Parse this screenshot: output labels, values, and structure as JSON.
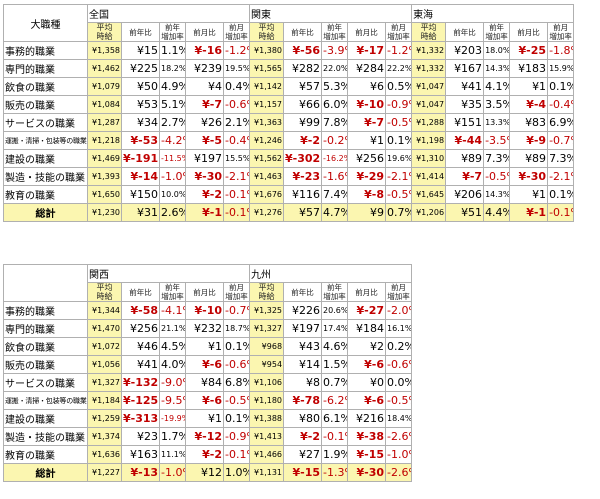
{
  "corner_label": "大職種",
  "subheaders": [
    "平均\n時給",
    "前年比",
    "前年\n増加率",
    "前月比",
    "前月\n増加率"
  ],
  "top_table": {
    "regions": [
      "全国",
      "関東",
      "東海"
    ],
    "rows": [
      {
        "cat": "事務的職業",
        "small": false,
        "cells": [
          [
            "¥1,358",
            "¥15",
            "1.1%",
            "¥-16",
            "-1.2%"
          ],
          [
            "¥1,380",
            "¥-56",
            "-3.9%",
            "¥-17",
            "-1.2%"
          ],
          [
            "¥1,332",
            "¥203",
            "18.0%",
            "¥-25",
            "-1.8%"
          ]
        ]
      },
      {
        "cat": "専門的職業",
        "small": false,
        "cells": [
          [
            "¥1,462",
            "¥225",
            "18.2%",
            "¥239",
            "19.5%"
          ],
          [
            "¥1,565",
            "¥282",
            "22.0%",
            "¥284",
            "22.2%"
          ],
          [
            "¥1,332",
            "¥167",
            "14.3%",
            "¥183",
            "15.9%"
          ]
        ]
      },
      {
        "cat": "飲食の職業",
        "small": false,
        "cells": [
          [
            "¥1,079",
            "¥50",
            "4.9%",
            "¥4",
            "0.4%"
          ],
          [
            "¥1,142",
            "¥57",
            "5.3%",
            "¥6",
            "0.5%"
          ],
          [
            "¥1,047",
            "¥41",
            "4.1%",
            "¥1",
            "0.1%"
          ]
        ]
      },
      {
        "cat": "販売の職業",
        "small": false,
        "cells": [
          [
            "¥1,084",
            "¥53",
            "5.1%",
            "¥-7",
            "-0.6%"
          ],
          [
            "¥1,157",
            "¥66",
            "6.0%",
            "¥-10",
            "-0.9%"
          ],
          [
            "¥1,047",
            "¥35",
            "3.5%",
            "¥-4",
            "-0.4%"
          ]
        ]
      },
      {
        "cat": "サービスの職業",
        "small": false,
        "cells": [
          [
            "¥1,287",
            "¥34",
            "2.7%",
            "¥26",
            "2.1%"
          ],
          [
            "¥1,363",
            "¥99",
            "7.8%",
            "¥-7",
            "-0.5%"
          ],
          [
            "¥1,288",
            "¥151",
            "13.3%",
            "¥83",
            "6.9%"
          ]
        ]
      },
      {
        "cat": "運搬・清掃・包装等の職業",
        "small": true,
        "cells": [
          [
            "¥1,218",
            "¥-53",
            "-4.2%",
            "¥-5",
            "-0.4%"
          ],
          [
            "¥1,246",
            "¥-2",
            "-0.2%",
            "¥1",
            "0.1%"
          ],
          [
            "¥1,198",
            "¥-44",
            "-3.5%",
            "¥-9",
            "-0.7%"
          ]
        ]
      },
      {
        "cat": "建設の職業",
        "small": false,
        "cells": [
          [
            "¥1,469",
            "¥-191",
            "-11.5%",
            "¥197",
            "15.5%"
          ],
          [
            "¥1,562",
            "¥-302",
            "-16.2%",
            "¥256",
            "19.6%"
          ],
          [
            "¥1,310",
            "¥89",
            "7.3%",
            "¥89",
            "7.3%"
          ]
        ]
      },
      {
        "cat": "製造・技能の職業",
        "small": false,
        "cells": [
          [
            "¥1,393",
            "¥-14",
            "-1.0%",
            "¥-30",
            "-2.1%"
          ],
          [
            "¥1,463",
            "¥-23",
            "-1.6%",
            "¥-29",
            "-2.1%"
          ],
          [
            "¥1,414",
            "¥-7",
            "-0.5%",
            "¥-30",
            "-2.1%"
          ]
        ]
      },
      {
        "cat": "教育の職業",
        "small": false,
        "cells": [
          [
            "¥1,650",
            "¥150",
            "10.0%",
            "¥-2",
            "-0.1%"
          ],
          [
            "¥1,676",
            "¥116",
            "7.4%",
            "¥-8",
            "-0.5%"
          ],
          [
            "¥1,645",
            "¥206",
            "14.3%",
            "¥1",
            "0.1%"
          ]
        ]
      }
    ],
    "total": {
      "label": "総計",
      "cells": [
        [
          "¥1,230",
          "¥31",
          "2.6%",
          "¥-1",
          "-0.1%"
        ],
        [
          "¥1,276",
          "¥57",
          "4.7%",
          "¥9",
          "0.7%"
        ],
        [
          "¥1,206",
          "¥51",
          "4.4%",
          "¥-1",
          "-0.1%"
        ]
      ]
    }
  },
  "bottom_table": {
    "regions": [
      "関西",
      "九州"
    ],
    "rows": [
      {
        "cat": "事務的職業",
        "small": false,
        "cells": [
          [
            "¥1,344",
            "¥-58",
            "-4.1%",
            "¥-10",
            "-0.7%"
          ],
          [
            "¥1,325",
            "¥226",
            "20.6%",
            "¥-27",
            "-2.0%"
          ]
        ]
      },
      {
        "cat": "専門的職業",
        "small": false,
        "cells": [
          [
            "¥1,470",
            "¥256",
            "21.1%",
            "¥232",
            "18.7%"
          ],
          [
            "¥1,327",
            "¥197",
            "17.4%",
            "¥184",
            "16.1%"
          ]
        ]
      },
      {
        "cat": "飲食の職業",
        "small": false,
        "cells": [
          [
            "¥1,072",
            "¥46",
            "4.5%",
            "¥1",
            "0.1%"
          ],
          [
            "¥968",
            "¥43",
            "4.6%",
            "¥2",
            "0.2%"
          ]
        ]
      },
      {
        "cat": "販売の職業",
        "small": false,
        "cells": [
          [
            "¥1,056",
            "¥41",
            "4.0%",
            "¥-6",
            "-0.6%"
          ],
          [
            "¥954",
            "¥14",
            "1.5%",
            "¥-6",
            "-0.6%"
          ]
        ]
      },
      {
        "cat": "サービスの職業",
        "small": false,
        "cells": [
          [
            "¥1,327",
            "¥-132",
            "-9.0%",
            "¥84",
            "6.8%"
          ],
          [
            "¥1,106",
            "¥8",
            "0.7%",
            "¥0",
            "0.0%"
          ]
        ]
      },
      {
        "cat": "運搬・清掃・包装等の職業",
        "small": true,
        "cells": [
          [
            "¥1,184",
            "¥-125",
            "-9.5%",
            "¥-6",
            "-0.5%"
          ],
          [
            "¥1,180",
            "¥-78",
            "-6.2%",
            "¥-6",
            "-0.5%"
          ]
        ]
      },
      {
        "cat": "建設の職業",
        "small": false,
        "cells": [
          [
            "¥1,259",
            "¥-313",
            "-19.9%",
            "¥1",
            "0.1%"
          ],
          [
            "¥1,388",
            "¥80",
            "6.1%",
            "¥216",
            "18.4%"
          ]
        ]
      },
      {
        "cat": "製造・技能の職業",
        "small": false,
        "cells": [
          [
            "¥1,374",
            "¥23",
            "1.7%",
            "¥-12",
            "-0.9%"
          ],
          [
            "¥1,413",
            "¥-2",
            "-0.1%",
            "¥-38",
            "-2.6%"
          ]
        ]
      },
      {
        "cat": "教育の職業",
        "small": false,
        "cells": [
          [
            "¥1,636",
            "¥163",
            "11.1%",
            "¥-2",
            "-0.1%"
          ],
          [
            "¥1,466",
            "¥27",
            "1.9%",
            "¥-15",
            "-1.0%"
          ]
        ]
      }
    ],
    "total": {
      "label": "総計",
      "cells": [
        [
          "¥1,227",
          "¥-13",
          "-1.0%",
          "¥12",
          "1.0%"
        ],
        [
          "¥1,131",
          "¥-15",
          "-1.3%",
          "¥-30",
          "-2.6%"
        ]
      ]
    }
  },
  "colors": {
    "highlight": "#fbf6b0",
    "negative": "#c00000"
  }
}
